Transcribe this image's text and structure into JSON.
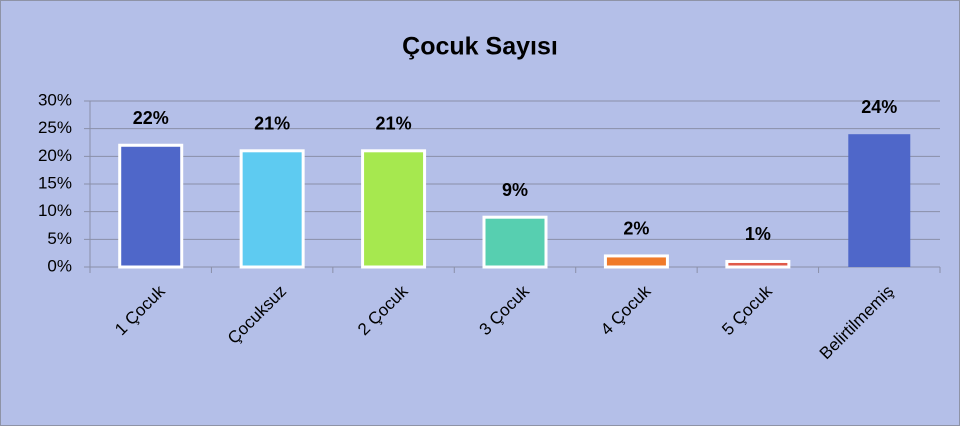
{
  "chart_data": {
    "type": "bar",
    "title": "Çocuk Sayısı",
    "categories": [
      "1 Çocuk",
      "Çocuksuz",
      "2 Çocuk",
      "3 Çocuk",
      "4 Çocuk",
      "5 Çocuk",
      "Belirtilmemiş"
    ],
    "values": [
      22,
      21,
      21,
      9,
      2,
      1,
      24
    ],
    "value_labels": [
      "22%",
      "21%",
      "21%",
      "9%",
      "2%",
      "1%",
      "24%"
    ],
    "colors": [
      "#4f67c9",
      "#5ecbf1",
      "#a6e84f",
      "#57cfb0",
      "#f07a2a",
      "#e05a4a",
      "#4f67c9"
    ],
    "ylim": [
      0,
      30
    ],
    "yticks": [
      {
        "value": 0,
        "label": "0%"
      },
      {
        "value": 5,
        "label": "5%"
      },
      {
        "value": 10,
        "label": "10%"
      },
      {
        "value": 15,
        "label": "15%"
      },
      {
        "value": 20,
        "label": "20%"
      },
      {
        "value": 25,
        "label": "25%"
      },
      {
        "value": 30,
        "label": "30%"
      }
    ],
    "grid": true
  }
}
